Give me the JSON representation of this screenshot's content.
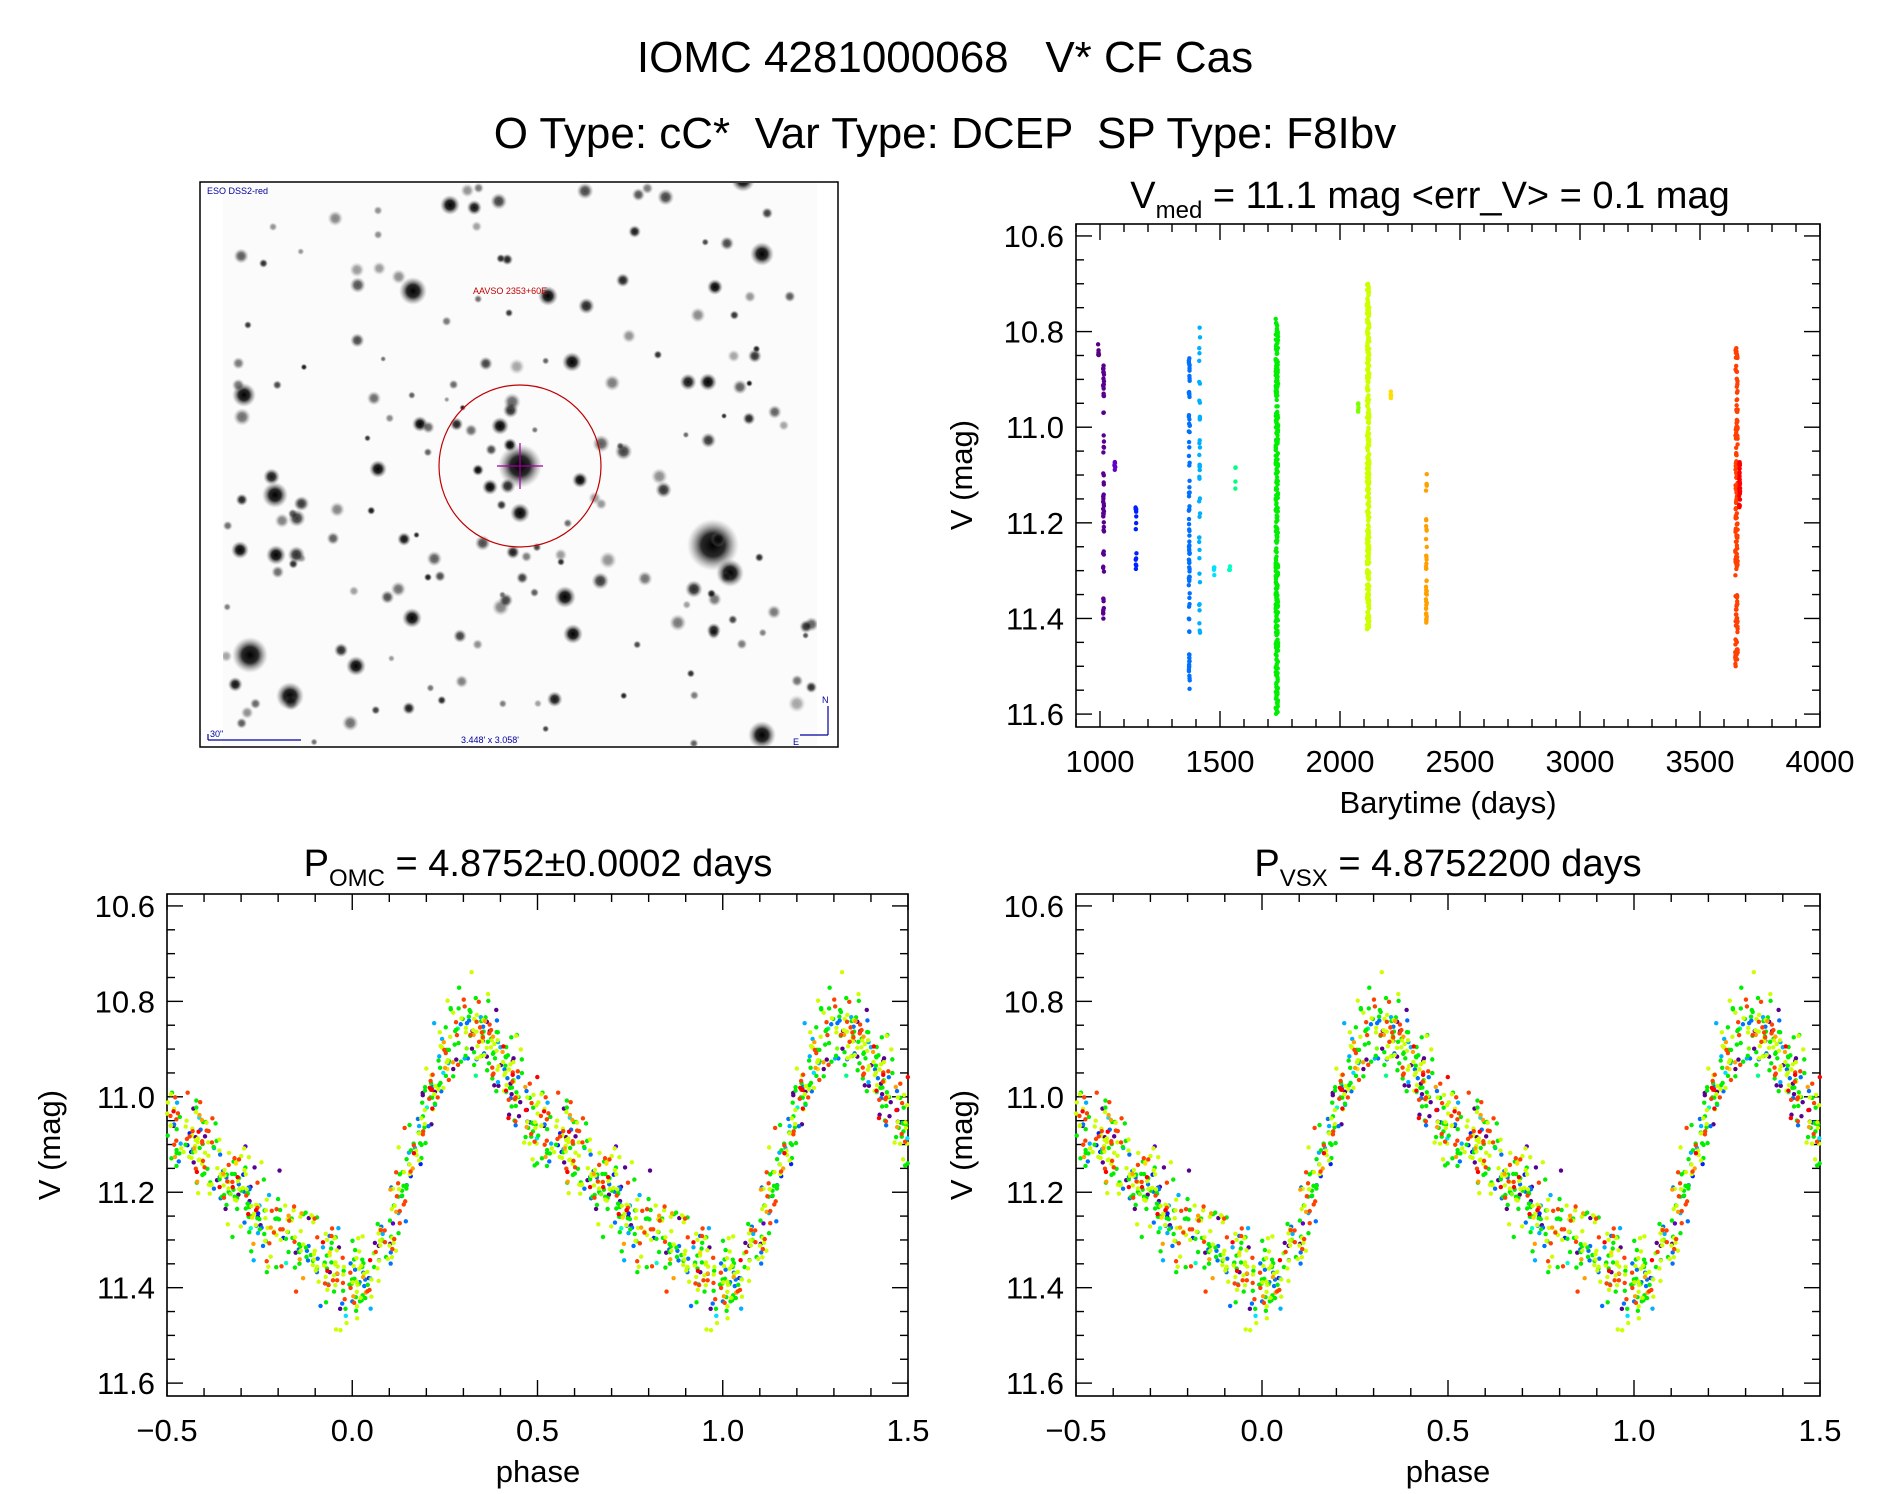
{
  "header": {
    "title": "IOMC 4281000068   V* CF Cas",
    "subtitle": "O Type: cC*  Var Type: DCEP  SP Type: F8Ibv"
  },
  "finder_image": {
    "survey_label": "ESO DSS2-red",
    "target_label": "AAVSO 2353+60E",
    "scale_label": "30\"",
    "fov_label": "3.448' x 3.058'",
    "north_label": "N",
    "east_label": "E",
    "circle_color": "#c00000",
    "crosshair_color": "#a000a0",
    "annotation_color": "#0000a0"
  },
  "chart_data": [
    {
      "type": "scatter",
      "id": "lightcurve",
      "title_main": "V",
      "title_sub": "med",
      "title_rest": " = 11.1 mag <err_V> = 0.1 mag",
      "xlabel": "Barytime (days)",
      "ylabel": "V (mag)",
      "xlim": [
        900,
        4000
      ],
      "ylim": [
        11.627,
        10.575
      ],
      "xticks": [
        1000,
        1500,
        2000,
        2500,
        3000,
        3500,
        4000
      ],
      "yticks": [
        10.6,
        10.8,
        11.0,
        11.2,
        11.4,
        11.6
      ],
      "ytick_labels": [
        "10.6",
        "10.8",
        "11.0",
        "11.2",
        "11.4",
        "11.6"
      ],
      "grid": false,
      "series": [
        {
          "time": 994,
          "mag_range": [
            10.82,
            10.85
          ],
          "color": "#580080",
          "n": 6
        },
        {
          "time": 1015,
          "mag_range": [
            10.87,
            11.45
          ],
          "color": "#580090",
          "n": 60
        },
        {
          "time": 1062,
          "mag_range": [
            11.07,
            11.09
          ],
          "color": "#6000c8",
          "n": 6
        },
        {
          "time": 1150,
          "mag_range": [
            11.14,
            11.3
          ],
          "color": "#0020ff",
          "n": 14
        },
        {
          "time": 1372,
          "mag_range": [
            10.85,
            11.55
          ],
          "color": "#0070ff",
          "n": 90
        },
        {
          "time": 1415,
          "mag_range": [
            10.79,
            11.45
          ],
          "color": "#00b0ff",
          "n": 40
        },
        {
          "time": 1475,
          "mag_range": [
            11.29,
            11.31
          ],
          "color": "#00e0ff",
          "n": 4
        },
        {
          "time": 1540,
          "mag_range": [
            11.28,
            11.3
          ],
          "color": "#00ffc0",
          "n": 4
        },
        {
          "time": 1565,
          "mag_range": [
            11.08,
            11.13
          ],
          "color": "#00ff80",
          "n": 4
        },
        {
          "time": 1737,
          "mag_range": [
            10.77,
            11.6
          ],
          "color": "#00ee00",
          "n": 320
        },
        {
          "time": 2076,
          "mag_range": [
            10.95,
            10.98
          ],
          "color": "#80ff00",
          "n": 6
        },
        {
          "time": 2117,
          "mag_range": [
            10.7,
            11.43
          ],
          "color": "#ccff00",
          "n": 320
        },
        {
          "time": 2213,
          "mag_range": [
            10.92,
            10.94
          ],
          "color": "#ffdd00",
          "n": 5
        },
        {
          "time": 2360,
          "mag_range": [
            11.09,
            11.41
          ],
          "color": "#ffa000",
          "n": 40
        },
        {
          "time": 3652,
          "mag_range": [
            10.83,
            11.5
          ],
          "color": "#ff4000",
          "n": 160
        },
        {
          "time": 3665,
          "mag_range": [
            11.07,
            11.17
          ],
          "color": "#ff0000",
          "n": 30
        }
      ]
    },
    {
      "type": "scatter",
      "id": "phase_omc",
      "title_main": "P",
      "title_sub": "OMC",
      "title_rest": " = 4.8752±0.0002 days",
      "period_days": 4.8752,
      "xlabel": "phase",
      "ylabel": "V (mag)",
      "xlim": [
        -0.5,
        1.5
      ],
      "ylim": [
        11.627,
        10.575
      ],
      "xticks": [
        -0.5,
        0.0,
        0.5,
        1.0,
        1.5
      ],
      "xtick_labels": [
        "−0.5",
        "0.0",
        "0.5",
        "1.0",
        "1.5"
      ],
      "yticks": [
        10.6,
        10.8,
        11.0,
        11.2,
        11.4,
        11.6
      ],
      "ytick_labels": [
        "10.6",
        "10.8",
        "11.0",
        "11.2",
        "11.4",
        "11.6"
      ],
      "grid": false
    },
    {
      "type": "scatter",
      "id": "phase_vsx",
      "title_main": "P",
      "title_sub": "VSX",
      "title_rest": " = 4.8752200 days",
      "period_days": 4.87522,
      "xlabel": "phase",
      "ylabel": "V (mag)",
      "xlim": [
        -0.5,
        1.5
      ],
      "ylim": [
        11.627,
        10.575
      ],
      "xticks": [
        -0.5,
        0.0,
        0.5,
        1.0,
        1.5
      ],
      "xtick_labels": [
        "−0.5",
        "0.0",
        "0.5",
        "1.0",
        "1.5"
      ],
      "yticks": [
        10.6,
        10.8,
        11.0,
        11.2,
        11.4,
        11.6
      ],
      "ytick_labels": [
        "10.6",
        "10.8",
        "11.0",
        "11.2",
        "11.4",
        "11.6"
      ],
      "grid": false
    }
  ],
  "phase_template": {
    "phase": [
      0,
      0.05,
      0.1,
      0.15,
      0.2,
      0.25,
      0.3,
      0.35,
      0.4,
      0.45,
      0.5,
      0.55,
      0.6,
      0.65,
      0.7,
      0.75,
      0.8,
      0.85,
      0.9,
      0.95,
      1.0
    ],
    "mag": [
      11.4,
      11.37,
      11.28,
      11.15,
      11.02,
      10.92,
      10.84,
      10.86,
      10.93,
      11.0,
      11.05,
      11.08,
      11.12,
      11.16,
      11.2,
      11.25,
      11.28,
      11.3,
      11.32,
      11.36,
      11.4
    ]
  }
}
